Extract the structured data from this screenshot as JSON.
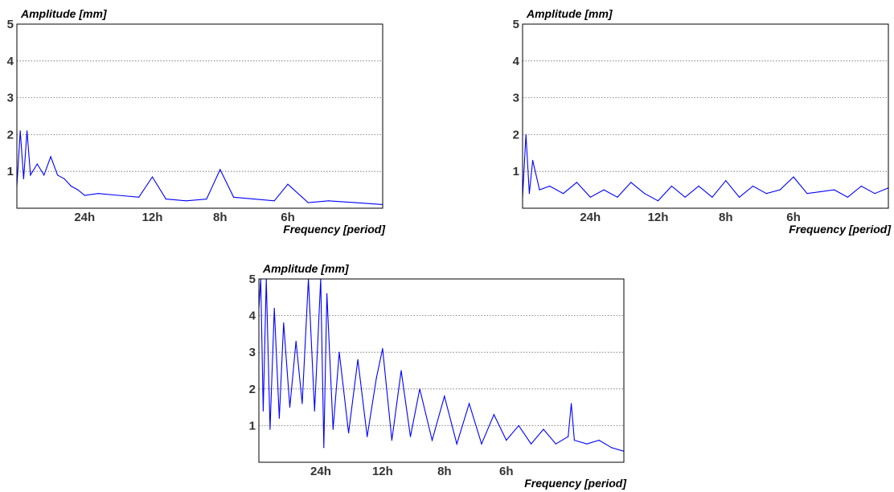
{
  "chart_data": [
    {
      "type": "line",
      "ylabel": "Amplitude [mm]",
      "xlabel": "Frequency [period]",
      "ylim": [
        0,
        5
      ],
      "yticks": [
        "1",
        "2",
        "3",
        "4",
        "5"
      ],
      "xticks": [
        "24h",
        "12h",
        "8h",
        "6h"
      ],
      "xtick_frequency": [
        1,
        2,
        3,
        4
      ],
      "xlim": [
        0,
        5.4
      ],
      "grid": true,
      "color": "#0000ff",
      "series": [
        {
          "x": [
            0,
            0.05,
            0.1,
            0.15,
            0.2,
            0.3,
            0.4,
            0.5,
            0.6,
            0.7,
            0.8,
            0.9,
            1.0,
            1.2,
            1.5,
            1.8,
            2.0,
            2.2,
            2.5,
            2.8,
            3.0,
            3.2,
            3.5,
            3.8,
            4.0,
            4.3,
            4.6,
            5.0,
            5.4
          ],
          "y": [
            0.6,
            2.1,
            0.8,
            2.1,
            0.9,
            1.2,
            0.9,
            1.4,
            0.9,
            0.8,
            0.6,
            0.5,
            0.35,
            0.4,
            0.35,
            0.3,
            0.85,
            0.25,
            0.2,
            0.25,
            1.05,
            0.3,
            0.25,
            0.2,
            0.65,
            0.15,
            0.2,
            0.15,
            0.1
          ]
        }
      ]
    },
    {
      "type": "line",
      "ylabel": "Amplitude [mm]",
      "xlabel": "Frequency [period]",
      "ylim": [
        0,
        5
      ],
      "yticks": [
        "1",
        "2",
        "3",
        "4",
        "5"
      ],
      "xticks": [
        "24h",
        "12h",
        "8h",
        "6h"
      ],
      "xtick_frequency": [
        1,
        2,
        3,
        4
      ],
      "xlim": [
        0,
        5.4
      ],
      "grid": true,
      "color": "#0000ff",
      "series": [
        {
          "x": [
            0,
            0.05,
            0.1,
            0.15,
            0.25,
            0.4,
            0.6,
            0.8,
            1.0,
            1.2,
            1.4,
            1.6,
            1.8,
            2.0,
            2.2,
            2.4,
            2.6,
            2.8,
            3.0,
            3.2,
            3.4,
            3.6,
            3.8,
            4.0,
            4.2,
            4.4,
            4.6,
            4.8,
            5.0,
            5.2,
            5.4
          ],
          "y": [
            0.3,
            2.0,
            0.4,
            1.3,
            0.5,
            0.6,
            0.4,
            0.7,
            0.3,
            0.5,
            0.3,
            0.7,
            0.4,
            0.2,
            0.6,
            0.3,
            0.6,
            0.3,
            0.75,
            0.3,
            0.6,
            0.4,
            0.5,
            0.85,
            0.4,
            0.45,
            0.5,
            0.3,
            0.6,
            0.4,
            0.55
          ]
        }
      ]
    },
    {
      "type": "line",
      "ylabel": "Amplitude [mm]",
      "xlabel": "Frequency [period]",
      "ylim": [
        0,
        5
      ],
      "yticks": [
        "1",
        "2",
        "3",
        "4",
        "5"
      ],
      "xticks": [
        "24h",
        "12h",
        "8h",
        "6h"
      ],
      "xtick_frequency": [
        1,
        2,
        3,
        4
      ],
      "xlim": [
        0,
        5.9
      ],
      "grid": true,
      "color": "#0000ff",
      "series": [
        {
          "x": [
            0,
            0.03,
            0.07,
            0.12,
            0.18,
            0.25,
            0.33,
            0.4,
            0.5,
            0.6,
            0.7,
            0.8,
            0.9,
            1.0,
            1.05,
            1.1,
            1.2,
            1.3,
            1.45,
            1.6,
            1.75,
            1.9,
            2.0,
            2.15,
            2.3,
            2.45,
            2.6,
            2.8,
            3.0,
            3.2,
            3.4,
            3.6,
            3.8,
            4.0,
            4.2,
            4.4,
            4.6,
            4.8,
            5.0,
            5.05,
            5.1,
            5.3,
            5.5,
            5.7,
            5.9
          ],
          "y": [
            4.2,
            5.0,
            1.4,
            5.0,
            0.9,
            4.2,
            1.2,
            3.8,
            1.5,
            3.3,
            1.6,
            5.0,
            1.4,
            5.0,
            0.4,
            4.6,
            0.9,
            3.0,
            0.8,
            2.8,
            0.7,
            2.3,
            3.1,
            0.6,
            2.5,
            0.7,
            2.0,
            0.6,
            1.8,
            0.5,
            1.6,
            0.5,
            1.3,
            0.6,
            1.0,
            0.5,
            0.9,
            0.5,
            0.7,
            1.6,
            0.6,
            0.5,
            0.6,
            0.4,
            0.3
          ]
        }
      ]
    }
  ]
}
